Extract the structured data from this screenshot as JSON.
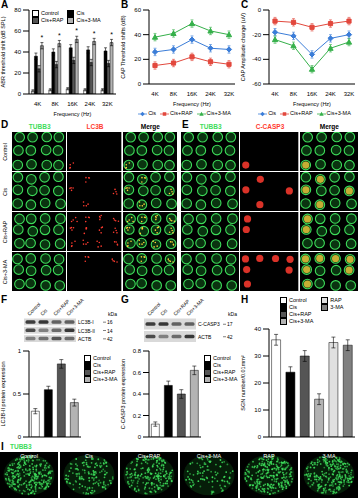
{
  "chart_data": [
    {
      "panel_label": "A",
      "type": "bar",
      "x_label": "Frequency (Hz)",
      "y_label": "ABR threshold shift (dB SPL)",
      "categories": [
        "4K",
        "8K",
        "16K",
        "24K",
        "32K"
      ],
      "series": [
        {
          "name": "Control",
          "color": "#ffffff",
          "values": [
            3,
            4,
            5,
            4,
            4
          ],
          "errors": [
            1,
            1,
            1,
            1,
            1
          ]
        },
        {
          "name": "Cis",
          "color": "#000000",
          "values": [
            36,
            40,
            44,
            42,
            41
          ],
          "errors": [
            3,
            3,
            3,
            3,
            3
          ]
        },
        {
          "name": "Cis+RAP",
          "color": "#555555",
          "values": [
            24,
            28,
            32,
            30,
            29
          ],
          "errors": [
            3,
            3,
            3,
            3,
            3
          ]
        },
        {
          "name": "Cis+3-MA",
          "color": "#b3b3b3",
          "values": [
            46,
            48,
            52,
            50,
            49
          ],
          "errors": [
            3,
            3,
            3,
            3,
            3
          ]
        }
      ],
      "significance": [
        "*",
        "*",
        "*",
        "*",
        "*"
      ],
      "ylim": [
        0,
        80
      ],
      "yticks": [
        0,
        20,
        40,
        60,
        80
      ],
      "legend": "top-left"
    },
    {
      "panel_label": "B",
      "type": "line",
      "x_label": "Frequency (Hz)",
      "y_label": "CAP Threshold shifts (dB)",
      "categories": [
        "4K",
        "8K",
        "16K",
        "24K",
        "32K"
      ],
      "series": [
        {
          "name": "Cis",
          "color": "#3b7dd8",
          "marker": "diamond",
          "values": [
            26,
            28,
            36,
            29,
            28
          ],
          "errors": [
            3,
            3,
            3,
            3,
            3
          ]
        },
        {
          "name": "Cis+RAP",
          "color": "#e2483d",
          "marker": "square",
          "values": [
            15,
            17,
            22,
            18,
            16
          ],
          "errors": [
            3,
            3,
            3,
            3,
            3
          ]
        },
        {
          "name": "Cis+3-MA",
          "color": "#35b04a",
          "marker": "triangle",
          "values": [
            38,
            41,
            49,
            43,
            40
          ],
          "errors": [
            3,
            3,
            3,
            3,
            3
          ]
        }
      ],
      "ylim": [
        0,
        60
      ],
      "yticks": [
        0,
        20,
        40,
        60
      ],
      "legend": "bottom"
    },
    {
      "panel_label": "C",
      "type": "line",
      "x_label": "Frequency (Hz)",
      "y_label": "CAP Amplitude change (uV)",
      "categories": [
        "4K",
        "8K",
        "16K",
        "24K",
        "32K"
      ],
      "series": [
        {
          "name": "Cis",
          "color": "#3b7dd8",
          "marker": "diamond",
          "values": [
            -18,
            -21,
            -36,
            -23,
            -20
          ],
          "errors": [
            3,
            3,
            3,
            3,
            3
          ]
        },
        {
          "name": "Cis+RAP",
          "color": "#e2483d",
          "marker": "square",
          "values": [
            -9,
            -10,
            -14,
            -11,
            -9
          ],
          "errors": [
            3,
            3,
            3,
            3,
            3
          ]
        },
        {
          "name": "Cis+3-MA",
          "color": "#35b04a",
          "marker": "triangle",
          "values": [
            -24,
            -29,
            -48,
            -31,
            -26
          ],
          "errors": [
            3,
            3,
            3,
            3,
            3
          ]
        }
      ],
      "ylim": [
        -60,
        0
      ],
      "yticks": [
        -60,
        -40,
        -20,
        0
      ],
      "legend": "bottom"
    },
    {
      "panel_label": "F",
      "type": "bar",
      "y_label": "LC3B-II protein expression",
      "categories": [
        "Control",
        "Cis",
        "Cis+RAP",
        "Cis+3-MA"
      ],
      "values": [
        0.3,
        0.55,
        0.85,
        0.4
      ],
      "errors": [
        0.03,
        0.04,
        0.05,
        0.04
      ],
      "colors": [
        "#ffffff",
        "#000000",
        "#555555",
        "#b3b3b3"
      ],
      "ylim": [
        0,
        1
      ],
      "yticks": [
        0,
        0.5,
        1
      ],
      "legend": "right",
      "tick_labels": "y",
      "blot": {
        "lanes": [
          "Control",
          "Cis",
          "Cis+RAP",
          "Cis+3-MA"
        ],
        "unit": "kDa",
        "bands": [
          {
            "name": "LC3B-I",
            "kDa": 16
          },
          {
            "name": "LC3B-II",
            "kDa": 14
          },
          {
            "name": "ACTB",
            "kDa": 42
          }
        ]
      }
    },
    {
      "panel_label": "G",
      "type": "bar",
      "y_label": "C-CASP3 protein expression",
      "categories": [
        "Control",
        "Cis",
        "Cis+RAP",
        "Cis+3-MA"
      ],
      "values": [
        0.12,
        0.48,
        0.4,
        0.62
      ],
      "errors": [
        0.02,
        0.04,
        0.04,
        0.04
      ],
      "colors": [
        "#ffffff",
        "#000000",
        "#555555",
        "#b3b3b3"
      ],
      "ylim": [
        0,
        0.8
      ],
      "yticks": [
        0,
        0.2,
        0.4,
        0.6,
        0.8
      ],
      "legend": "right",
      "tick_labels": "y",
      "blot": {
        "lanes": [
          "Control",
          "Cis",
          "Cis+RAP",
          "Cis+3-MA"
        ],
        "unit": "kDa",
        "bands": [
          {
            "name": "C-CASP3",
            "kDa": 17
          },
          {
            "name": "ACTB",
            "kDa": 42
          }
        ]
      }
    },
    {
      "panel_label": "H",
      "type": "bar",
      "y_label": "SGN number/0.01mm²",
      "categories": [
        "Control",
        "Cis",
        "Cis+RAP",
        "Cis+3-MA",
        "RAP",
        "3-MA"
      ],
      "values": [
        36,
        24,
        30,
        14,
        35,
        34
      ],
      "errors": [
        2,
        2,
        2,
        2,
        2,
        2
      ],
      "colors": [
        "#ffffff",
        "#000000",
        "#555555",
        "#b3b3b3",
        "#e0e0e0",
        "#808080"
      ],
      "ylim": [
        0,
        40
      ],
      "yticks": [
        0,
        10,
        20,
        30,
        40
      ],
      "legend": "top",
      "tick_labels": "y"
    }
  ],
  "images": [
    {
      "panel_label": "D",
      "columns": [
        "TUBB3",
        "LC3B",
        "Merge"
      ],
      "rows": [
        "Control",
        "Cis",
        "Cis+RAP",
        "Cis+3-MA"
      ]
    },
    {
      "panel_label": "E",
      "columns": [
        "TUBB3",
        "C-CASP3",
        "Merge"
      ]
    },
    {
      "panel_label": "I",
      "stain": "TUBB3",
      "columns": [
        "Control",
        "Cis",
        "Cis+RAP",
        "Cis+3-MA",
        "RAP",
        "3-MA"
      ]
    }
  ]
}
